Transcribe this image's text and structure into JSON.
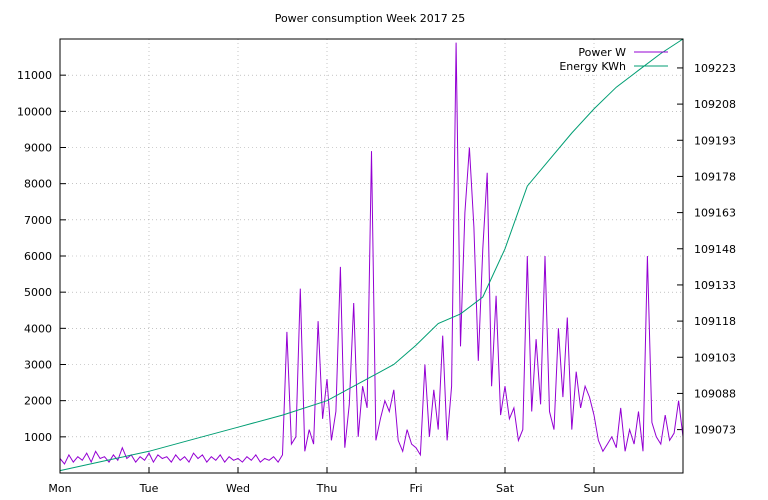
{
  "chart_data": {
    "type": "line",
    "title": "Power consumption Week 2017 25",
    "x_categories": [
      "Mon",
      "Tue",
      "Wed",
      "Thu",
      "Fri",
      "Sat",
      "Sun"
    ],
    "y_left": {
      "ticks": [
        1000,
        2000,
        3000,
        4000,
        5000,
        6000,
        7000,
        8000,
        9000,
        10000,
        11000
      ],
      "range": [
        0,
        12000
      ]
    },
    "y_right": {
      "ticks": [
        109073,
        109088,
        109103,
        109118,
        109133,
        109148,
        109163,
        109178,
        109193,
        109208,
        109223
      ],
      "range": [
        109055,
        109235
      ]
    },
    "grid": true,
    "legend_position": "top-right",
    "series": [
      {
        "name": "Power W",
        "axis": "left",
        "color": "#9400d3",
        "x": [
          0,
          0.05,
          0.1,
          0.15,
          0.2,
          0.25,
          0.3,
          0.35,
          0.4,
          0.45,
          0.5,
          0.55,
          0.6,
          0.65,
          0.7,
          0.75,
          0.8,
          0.85,
          0.9,
          0.95,
          1,
          1.05,
          1.1,
          1.15,
          1.2,
          1.25,
          1.3,
          1.35,
          1.4,
          1.45,
          1.5,
          1.55,
          1.6,
          1.65,
          1.7,
          1.75,
          1.8,
          1.85,
          1.9,
          1.95,
          2,
          2.05,
          2.1,
          2.15,
          2.2,
          2.25,
          2.3,
          2.35,
          2.4,
          2.45,
          2.5,
          2.55,
          2.6,
          2.65,
          2.7,
          2.75,
          2.8,
          2.85,
          2.9,
          2.95,
          3,
          3.05,
          3.1,
          3.15,
          3.2,
          3.25,
          3.3,
          3.35,
          3.4,
          3.45,
          3.5,
          3.55,
          3.6,
          3.65,
          3.7,
          3.75,
          3.8,
          3.85,
          3.9,
          3.95,
          4,
          4.05,
          4.1,
          4.15,
          4.2,
          4.25,
          4.3,
          4.35,
          4.4,
          4.45,
          4.5,
          4.55,
          4.6,
          4.65,
          4.7,
          4.75,
          4.8,
          4.85,
          4.9,
          4.95,
          5,
          5.05,
          5.1,
          5.15,
          5.2,
          5.25,
          5.3,
          5.35,
          5.4,
          5.45,
          5.5,
          5.55,
          5.6,
          5.65,
          5.7,
          5.75,
          5.8,
          5.85,
          5.9,
          5.95,
          6,
          6.05,
          6.1,
          6.15,
          6.2,
          6.25,
          6.3,
          6.35,
          6.4,
          6.45,
          6.5,
          6.55,
          6.6,
          6.65,
          6.7,
          6.75,
          6.8,
          6.85,
          6.9,
          6.95,
          7
        ],
        "values": [
          400,
          250,
          500,
          300,
          450,
          350,
          550,
          300,
          600,
          400,
          450,
          300,
          500,
          350,
          700,
          400,
          500,
          300,
          450,
          350,
          550,
          300,
          500,
          400,
          450,
          300,
          500,
          350,
          450,
          300,
          550,
          400,
          500,
          300,
          450,
          350,
          500,
          300,
          450,
          350,
          400,
          300,
          450,
          350,
          500,
          300,
          400,
          350,
          450,
          300,
          500,
          3900,
          800,
          1000,
          5100,
          600,
          1200,
          800,
          4200,
          1500,
          2600,
          900,
          1700,
          5700,
          700,
          1900,
          4700,
          1000,
          2400,
          1800,
          8900,
          900,
          1500,
          2000,
          1700,
          2300,
          900,
          600,
          1200,
          800,
          700,
          500,
          3000,
          1000,
          2300,
          1200,
          3800,
          900,
          2400,
          11900,
          3500,
          7200,
          9000,
          6800,
          3100,
          6200,
          8300,
          2400,
          4900,
          1600,
          2400,
          1500,
          1800,
          900,
          1200,
          6000,
          1700,
          3700,
          1900,
          6000,
          1700,
          1200,
          4000,
          2100,
          4300,
          1200,
          2800,
          1800,
          2400,
          2100,
          1600,
          900,
          600,
          800,
          1000,
          700,
          1800,
          600,
          1200,
          800,
          1700,
          600,
          6000,
          1400,
          1000,
          800,
          1600,
          900,
          1100,
          2000,
          1000
        ]
      },
      {
        "name": "Energy KWh",
        "axis": "right",
        "color": "#009e73",
        "x": [
          0,
          0.5,
          1,
          1.5,
          2,
          2.5,
          3,
          3.25,
          3.5,
          3.75,
          4,
          4.25,
          4.5,
          4.75,
          5,
          5.25,
          5.5,
          5.75,
          6,
          6.25,
          6.5,
          6.75,
          7
        ],
        "values": [
          109056,
          109060,
          109064,
          109069,
          109074,
          109079,
          109085,
          109090,
          109095,
          109100,
          109108,
          109117,
          109121,
          109128,
          109148,
          109174,
          109185,
          109196,
          109206,
          109215,
          109222,
          109229,
          109235
        ]
      }
    ]
  }
}
